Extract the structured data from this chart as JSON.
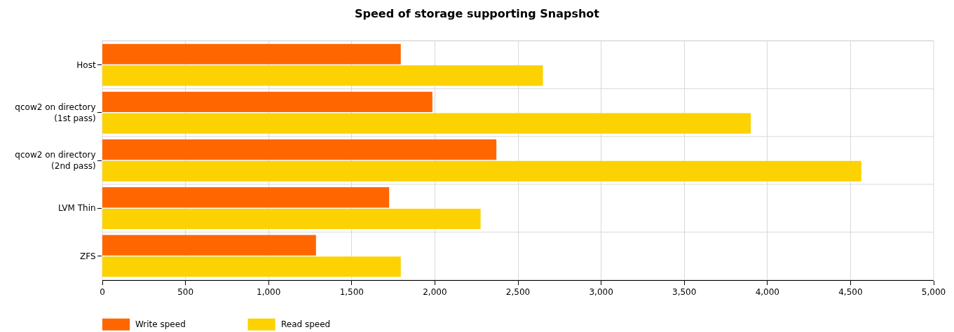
{
  "chart_data": {
    "type": "bar",
    "orientation": "horizontal",
    "title": "Speed of storage supporting Snapshot",
    "categories": [
      "Host",
      "qcow2 on directory\n(1st pass)",
      "qcow2 on directory\n(2nd pass)",
      "LVM Thin",
      "ZFS"
    ],
    "series": [
      {
        "name": "Write speed",
        "color": "#ff6600",
        "values": [
          1795,
          1985,
          2370,
          1725,
          1285
        ]
      },
      {
        "name": "Read speed",
        "color": "#fcd202",
        "values": [
          2650,
          3900,
          4565,
          2275,
          1795
        ]
      }
    ],
    "xlim": [
      0,
      5000
    ],
    "xticks": [
      0,
      {
        "value": 500,
        "label": "500"
      },
      {
        "value": 1000,
        "label": "1,000"
      },
      {
        "value": 1500,
        "label": "1,500"
      },
      {
        "value": 2000,
        "label": "2,000"
      },
      {
        "value": 2500,
        "label": "2,500"
      },
      {
        "value": 3000,
        "label": "3,000"
      },
      {
        "value": 3500,
        "label": "3,500"
      },
      {
        "value": 4000,
        "label": "4,000"
      },
      {
        "value": 4500,
        "label": "4,500"
      },
      {
        "value": 5000,
        "label": "5,000"
      }
    ],
    "grid": true,
    "legend": "bottom left"
  }
}
